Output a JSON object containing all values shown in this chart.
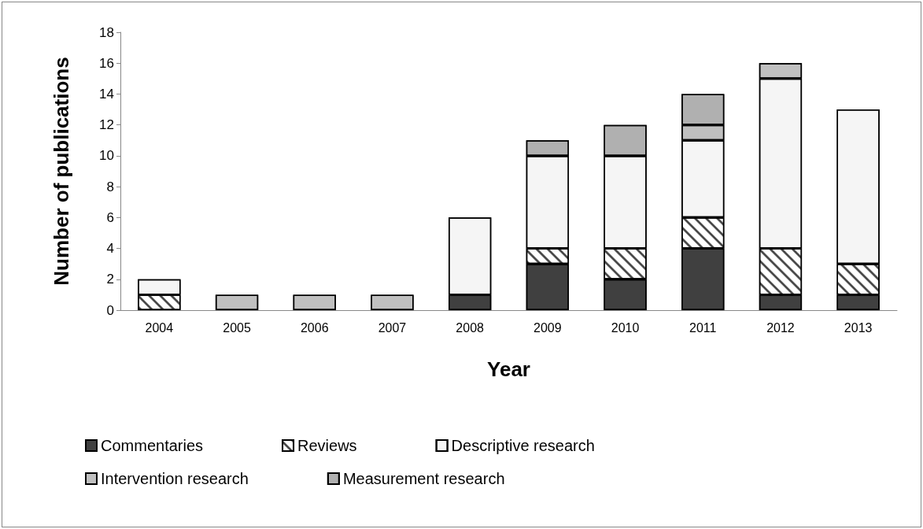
{
  "chart_data": {
    "type": "bar",
    "stacked": true,
    "xlabel": "Year",
    "ylabel": "Number of publications",
    "categories": [
      "2004",
      "2005",
      "2006",
      "2007",
      "2008",
      "2009",
      "2010",
      "2011",
      "2012",
      "2013"
    ],
    "series": [
      {
        "name": "Commentaries",
        "color": "#404040",
        "values": [
          0,
          0,
          0,
          0,
          1,
          3,
          2,
          4,
          1,
          1
        ]
      },
      {
        "name": "Reviews",
        "color": "#ffffff",
        "values": [
          1,
          0,
          0,
          0,
          0,
          1,
          2,
          2,
          3,
          2
        ]
      },
      {
        "name": "Descriptive research",
        "color": "#f5f5f5",
        "values": [
          1,
          0,
          0,
          0,
          5,
          6,
          6,
          5,
          11,
          10
        ]
      },
      {
        "name": "Intervention research",
        "color": "#c0c0c0",
        "values": [
          0,
          1,
          1,
          1,
          0,
          0,
          0,
          1,
          1,
          0
        ]
      },
      {
        "name": "Measurement research",
        "color": "#b0b0b0",
        "values": [
          0,
          0,
          0,
          0,
          0,
          1,
          2,
          2,
          0,
          0
        ]
      }
    ],
    "ylim": [
      0,
      18
    ],
    "yticks": [
      0,
      2,
      4,
      6,
      8,
      10,
      12,
      14,
      16,
      18
    ],
    "grid": false,
    "legend": "bottom"
  }
}
